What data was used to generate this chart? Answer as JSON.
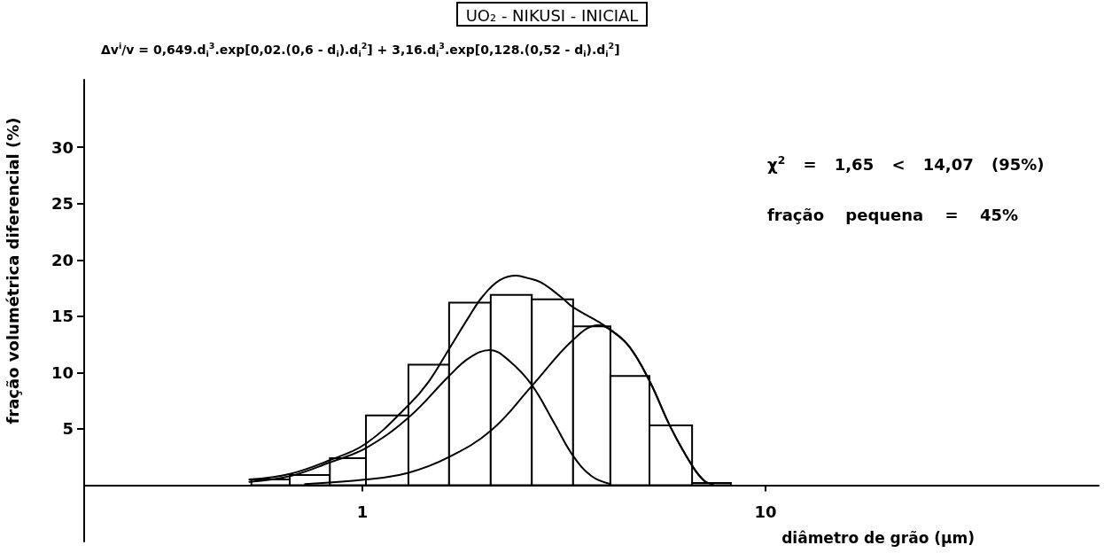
{
  "chart_data": {
    "type": "histogram",
    "title": "UO₂ - NIKUSI - INICIAL",
    "xlabel": "diâmetro de grão (µm)",
    "ylabel": "fração volumétrica diferencial (%)",
    "annotations": [
      "Δv$^{i}$/v = 0,649.d$_{i}$$^{3}$.exp[0,02.(0,6 - d$_{i}$).d$_{i}$$^{2}$] + 3,16.d$_{i}$$^{3}$.exp[0,128.(0,52 - d$_{i}$).d$_{i}$$^{2}$]",
      "χ$^{2}$ = 1,65 < 14,07 (95%)",
      "fração pequena = 45%"
    ],
    "log": "x",
    "xlim": [
      0.204,
      67
    ],
    "xticks": [
      1,
      10
    ],
    "ylim": [
      -5,
      36
    ],
    "yticks": [
      5,
      10,
      15,
      20,
      25,
      30
    ],
    "grid": false,
    "marker": "none",
    "bins": [
      0.53,
      0.66,
      0.83,
      1.02,
      1.3,
      1.64,
      2.08,
      2.63,
      3.33,
      4.12,
      5.15,
      6.57,
      8.2
    ],
    "values": [
      0.5,
      0.9,
      2.4,
      6.2,
      10.7,
      16.2,
      16.9,
      16.5,
      14.1,
      9.7,
      5.3,
      0.2
    ],
    "color": "#ffffff",
    "series": [
      {
        "type": "line",
        "color": "#000000",
        "x": [
          0.524,
          0.661,
          0.827,
          1.02,
          1.3,
          1.64,
          1.84,
          2.07,
          2.32,
          2.63,
          2.99,
          3.33,
          3.7,
          4.12
        ],
        "values": [
          0.3,
          0.8,
          2.0,
          3.3,
          6.0,
          9.7,
          11.3,
          12.0,
          11.0,
          8.9,
          5.5,
          2.6,
          0.8,
          0.1
        ]
      },
      {
        "type": "line",
        "color": "#000000",
        "x": [
          0.72,
          1.02,
          1.3,
          1.64,
          2.09,
          2.63,
          3.33,
          3.85,
          4.12,
          4.59,
          5.16,
          5.8,
          6.58,
          7.04,
          7.4
        ],
        "values": [
          0.1,
          0.5,
          1.1,
          2.5,
          4.9,
          8.8,
          12.9,
          14.2,
          13.8,
          12.3,
          9.2,
          5.2,
          1.7,
          0.4,
          0.1
        ]
      },
      {
        "type": "line",
        "color": "#000000",
        "x": [
          0.524,
          0.661,
          0.827,
          1.02,
          1.3,
          1.46,
          1.64,
          1.84,
          1.99,
          2.19,
          2.41,
          2.56,
          2.77,
          3.11,
          3.33,
          3.85,
          4.12,
          4.59,
          5.16,
          5.8,
          6.58,
          7.04,
          7.4
        ],
        "values": [
          0.5,
          1.0,
          2.2,
          3.7,
          7.1,
          9.2,
          12.1,
          15.0,
          16.8,
          18.2,
          18.6,
          18.4,
          18.0,
          16.7,
          15.8,
          14.5,
          13.8,
          12.3,
          9.2,
          5.2,
          1.7,
          0.4,
          0.1
        ]
      }
    ]
  }
}
